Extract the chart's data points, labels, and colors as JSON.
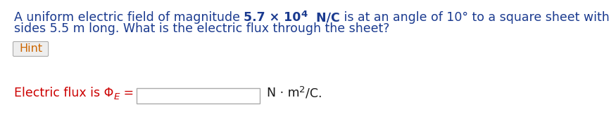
{
  "bg_color": "#ffffff",
  "blue": "#1a3a8f",
  "red": "#cc0000",
  "black": "#1a1a1a",
  "hint_text_color": "#cc6600",
  "line1_normal": "A uniform electric field of magnitude ",
  "line1_bold": "5.7 × 10",
  "line1_super": "4",
  "line1_bold2": "  N/C",
  "line1_rest": " is at an angle of 10° to a square sheet with",
  "line2": "sides 5.5 m long. What is the electric flux through the sheet?",
  "hint": "Hint",
  "flux_prefix": "Electric flux is Φ",
  "flux_sub": "E",
  "flux_eq": " =",
  "units_main": "N · m",
  "units_super": "2",
  "units_end": "/C.",
  "fs": 12.5,
  "fs_small": 9.5,
  "fs_hint": 11.5
}
